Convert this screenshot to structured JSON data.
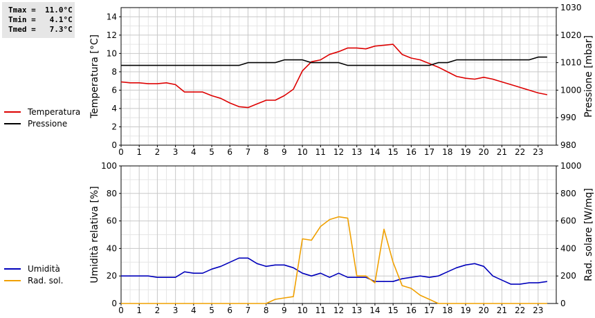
{
  "stats": {
    "tmax": "Tmax =  11.0°C",
    "tmin": "Tmin =   4.1°C",
    "tmed": "Tmed =   7.3°C"
  },
  "legend_top": [
    {
      "label": "Temperatura",
      "color": "#dd0000"
    },
    {
      "label": "Pressione",
      "color": "#000000"
    }
  ],
  "legend_bottom": [
    {
      "label": "Umidità",
      "color": "#0000bb"
    },
    {
      "label": "Rad. sol.",
      "color": "#f0a000"
    }
  ],
  "chart_data": [
    {
      "type": "line",
      "xlim": [
        0,
        24
      ],
      "xticks": [
        0,
        1,
        2,
        3,
        4,
        5,
        6,
        7,
        8,
        9,
        10,
        11,
        12,
        13,
        14,
        15,
        16,
        17,
        18,
        19,
        20,
        21,
        22,
        23
      ],
      "ylabel_left": "Temperatura [°C]",
      "ylim_left": [
        0,
        15
      ],
      "yticks_left": [
        0,
        2,
        4,
        6,
        8,
        10,
        12,
        14
      ],
      "ylabel_right": "Pressione [mbar]",
      "ylim_right": [
        980,
        1030
      ],
      "yticks_right": [
        980,
        990,
        1000,
        1010,
        1020,
        1030
      ],
      "grid": true,
      "series": [
        {
          "name": "Temperatura",
          "axis": "left",
          "color": "#dd0000",
          "x": [
            0,
            0.5,
            1,
            1.5,
            2,
            2.5,
            3,
            3.5,
            4,
            4.5,
            5,
            5.5,
            6,
            6.5,
            7,
            7.5,
            8,
            8.5,
            9,
            9.5,
            10,
            10.5,
            11,
            11.5,
            12,
            12.5,
            13,
            13.5,
            14,
            14.5,
            15,
            15.5,
            16,
            16.5,
            17,
            17.5,
            18,
            18.5,
            19,
            19.5,
            20,
            20.5,
            21,
            21.5,
            22,
            22.5,
            23,
            23.5
          ],
          "y": [
            6.9,
            6.8,
            6.8,
            6.7,
            6.7,
            6.8,
            6.6,
            5.8,
            5.8,
            5.8,
            5.4,
            5.1,
            4.6,
            4.2,
            4.1,
            4.5,
            4.9,
            4.9,
            5.4,
            6.1,
            8.1,
            9.1,
            9.3,
            9.9,
            10.2,
            10.6,
            10.6,
            10.5,
            10.8,
            10.9,
            11.0,
            9.9,
            9.5,
            9.3,
            8.9,
            8.5,
            8.0,
            7.5,
            7.3,
            7.2,
            7.4,
            7.2,
            6.9,
            6.6,
            6.3,
            6.0,
            5.7,
            5.5
          ]
        },
        {
          "name": "Pressione",
          "axis": "right",
          "color": "#000000",
          "x": [
            0,
            0.5,
            1,
            1.5,
            2,
            2.5,
            3,
            3.5,
            4,
            4.5,
            5,
            5.5,
            6,
            6.5,
            7,
            7.5,
            8,
            8.5,
            9,
            9.5,
            10,
            10.5,
            11,
            11.5,
            12,
            12.5,
            13,
            13.5,
            14,
            14.5,
            15,
            15.5,
            16,
            16.5,
            17,
            17.5,
            18,
            18.5,
            19,
            19.5,
            20,
            20.5,
            21,
            21.5,
            22,
            22.5,
            23,
            23.5
          ],
          "y": [
            1009,
            1009,
            1009,
            1009,
            1009,
            1009,
            1009,
            1009,
            1009,
            1009,
            1009,
            1009,
            1009,
            1009,
            1010,
            1010,
            1010,
            1010,
            1011,
            1011,
            1011,
            1010,
            1010,
            1010,
            1010,
            1009,
            1009,
            1009,
            1009,
            1009,
            1009,
            1009,
            1009,
            1009,
            1009,
            1010,
            1010,
            1011,
            1011,
            1011,
            1011,
            1011,
            1011,
            1011,
            1011,
            1011,
            1012,
            1012
          ]
        }
      ]
    },
    {
      "type": "line",
      "xlim": [
        0,
        24
      ],
      "xticks": [
        0,
        1,
        2,
        3,
        4,
        5,
        6,
        7,
        8,
        9,
        10,
        11,
        12,
        13,
        14,
        15,
        16,
        17,
        18,
        19,
        20,
        21,
        22,
        23
      ],
      "ylabel_left": "Umidità relativa [%]",
      "ylim_left": [
        0,
        100
      ],
      "yticks_left": [
        0,
        20,
        40,
        60,
        80,
        100
      ],
      "ylabel_right": "Rad. solare [W/mq]",
      "ylim_right": [
        0,
        1000
      ],
      "yticks_right": [
        0,
        200,
        400,
        600,
        800,
        1000
      ],
      "grid": true,
      "series": [
        {
          "name": "Umidità",
          "axis": "left",
          "color": "#0000bb",
          "x": [
            0,
            0.5,
            1,
            1.5,
            2,
            2.5,
            3,
            3.5,
            4,
            4.5,
            5,
            5.5,
            6,
            6.5,
            7,
            7.5,
            8,
            8.5,
            9,
            9.5,
            10,
            10.5,
            11,
            11.5,
            12,
            12.5,
            13,
            13.5,
            14,
            14.5,
            15,
            15.5,
            16,
            16.5,
            17,
            17.5,
            18,
            18.5,
            19,
            19.5,
            20,
            20.5,
            21,
            21.5,
            22,
            22.5,
            23,
            23.5
          ],
          "y": [
            20,
            20,
            20,
            20,
            19,
            19,
            19,
            23,
            22,
            22,
            25,
            27,
            30,
            33,
            33,
            29,
            27,
            28,
            28,
            26,
            22,
            20,
            22,
            19,
            22,
            19,
            19,
            19,
            16,
            16,
            16,
            18,
            19,
            20,
            19,
            20,
            23,
            26,
            28,
            29,
            27,
            20,
            17,
            14,
            14,
            15,
            15,
            16
          ]
        },
        {
          "name": "Rad. sol.",
          "axis": "right",
          "color": "#f0a000",
          "x": [
            0,
            0.5,
            1,
            1.5,
            2,
            2.5,
            3,
            3.5,
            4,
            4.5,
            5,
            5.5,
            6,
            6.5,
            7,
            7.5,
            8,
            8.5,
            9,
            9.5,
            10,
            10.5,
            11,
            11.5,
            12,
            12.5,
            13,
            13.5,
            14,
            14.5,
            15,
            15.5,
            16,
            16.5,
            17,
            17.5,
            18,
            18.5,
            19,
            19.5,
            20,
            20.5,
            21,
            21.5,
            22,
            22.5,
            23,
            23.5
          ],
          "y": [
            0,
            0,
            0,
            0,
            0,
            0,
            0,
            0,
            0,
            0,
            0,
            0,
            0,
            0,
            0,
            0,
            0,
            30,
            40,
            50,
            470,
            460,
            560,
            610,
            630,
            620,
            200,
            200,
            150,
            540,
            300,
            130,
            110,
            60,
            30,
            0,
            0,
            0,
            0,
            0,
            0,
            0,
            0,
            0,
            0,
            0,
            0,
            0
          ]
        }
      ]
    }
  ]
}
